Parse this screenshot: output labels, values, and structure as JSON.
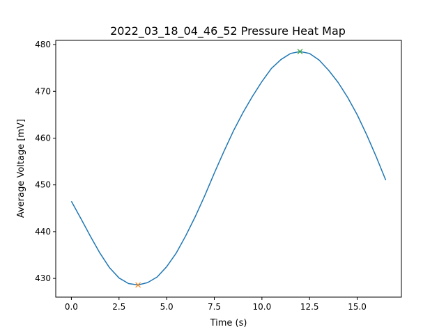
{
  "chart_data": {
    "type": "line",
    "title": "2022_03_18_04_46_52 Pressure Heat Map",
    "xlabel": "Time (s)",
    "ylabel": "Average Voltage [mV]",
    "xlim": [
      -0.82,
      17.32
    ],
    "ylim": [
      426.0,
      480.9
    ],
    "xticks": [
      "0.0",
      "2.5",
      "5.0",
      "7.5",
      "10.0",
      "12.5",
      "15.0"
    ],
    "xtick_values": [
      0,
      2.5,
      5,
      7.5,
      10,
      12.5,
      15
    ],
    "yticks": [
      "430",
      "440",
      "450",
      "460",
      "470",
      "480"
    ],
    "ytick_values": [
      430,
      440,
      450,
      460,
      470,
      480
    ],
    "grid": false,
    "series": [
      {
        "color": "#1f77b4",
        "x": [
          0,
          0.5,
          1,
          1.5,
          2,
          2.5,
          3,
          3.5,
          4,
          4.5,
          5,
          5.5,
          6,
          6.5,
          7,
          7.5,
          8,
          8.5,
          9,
          9.5,
          10,
          10.5,
          11,
          11.5,
          12,
          12.5,
          13,
          13.5,
          14,
          14.5,
          15,
          15.5,
          16,
          16.5
        ],
        "y": [
          446.5,
          442.8,
          439.0,
          435.4,
          432.3,
          430.1,
          428.9,
          428.6,
          429.1,
          430.3,
          432.5,
          435.4,
          439.1,
          443.2,
          447.7,
          452.5,
          457.1,
          461.5,
          465.4,
          468.9,
          472.1,
          474.9,
          476.8,
          478.1,
          478.5,
          478.1,
          476.7,
          474.5,
          471.9,
          468.7,
          465.0,
          460.7,
          456.0,
          451.0
        ]
      }
    ],
    "markers": [
      {
        "x": 3.5,
        "y": 428.6,
        "symbol": "x",
        "color": "#ff7f0e"
      },
      {
        "x": 12.0,
        "y": 478.5,
        "symbol": "x",
        "color": "#2ca02c"
      }
    ]
  }
}
